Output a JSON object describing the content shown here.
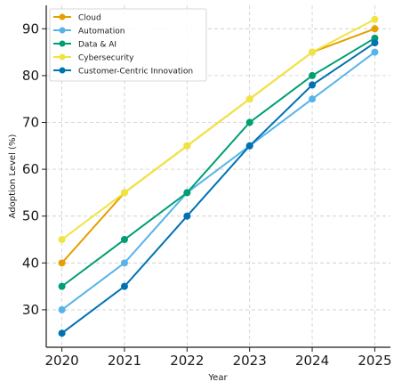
{
  "chart_data": {
    "type": "line",
    "title": "",
    "xlabel": "Year",
    "ylabel": "Adoption Level (%)",
    "x": [
      2020,
      2021,
      2022,
      2023,
      2024,
      2025
    ],
    "xlim": [
      2019.75,
      2025.25
    ],
    "ylim": [
      22,
      95
    ],
    "yticks": [
      30,
      40,
      50,
      60,
      70,
      80,
      90
    ],
    "grid": true,
    "legend_position": "top-left",
    "series": [
      {
        "name": "Cloud",
        "color": "#E69F00",
        "values": [
          40,
          55,
          65,
          75,
          85,
          90
        ]
      },
      {
        "name": "Automation",
        "color": "#56B4E9",
        "values": [
          30,
          40,
          55,
          65,
          75,
          85
        ]
      },
      {
        "name": "Data & AI",
        "color": "#009E73",
        "values": [
          35,
          45,
          55,
          70,
          80,
          88
        ]
      },
      {
        "name": "Cybersecurity",
        "color": "#F0E442",
        "values": [
          45,
          55,
          65,
          75,
          85,
          92
        ]
      },
      {
        "name": "Customer-Centric Innovation",
        "color": "#0072B2",
        "values": [
          25,
          35,
          50,
          65,
          78,
          87
        ]
      }
    ]
  }
}
